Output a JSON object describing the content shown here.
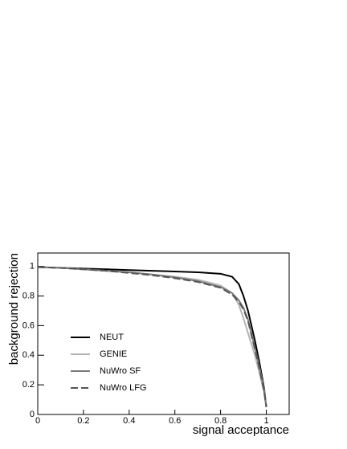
{
  "chart_data": {
    "type": "line",
    "x_label": "signal acceptance",
    "y_label": "background rejection",
    "x": [
      0,
      0.1,
      0.2,
      0.3,
      0.4,
      0.5,
      0.6,
      0.7,
      0.8,
      0.85,
      0.88,
      0.9,
      0.92,
      0.95,
      0.97,
      0.99,
      1.0
    ],
    "series": [
      {
        "name": "NEUT",
        "color": "#000000",
        "dashed": false,
        "values": [
          0.995,
          0.99,
          0.985,
          0.98,
          0.975,
          0.97,
          0.965,
          0.96,
          0.95,
          0.93,
          0.88,
          0.8,
          0.7,
          0.5,
          0.35,
          0.18,
          0.05
        ]
      },
      {
        "name": "GENIE",
        "color": "#b4b4b4",
        "dashed": false,
        "values": [
          0.995,
          0.99,
          0.98,
          0.97,
          0.96,
          0.945,
          0.93,
          0.91,
          0.87,
          0.82,
          0.74,
          0.65,
          0.55,
          0.4,
          0.28,
          0.15,
          0.05
        ]
      },
      {
        "name": "NuWro SF",
        "color": "#7a7a7a",
        "dashed": false,
        "values": [
          0.995,
          0.99,
          0.98,
          0.97,
          0.96,
          0.945,
          0.925,
          0.9,
          0.86,
          0.82,
          0.77,
          0.72,
          0.64,
          0.45,
          0.32,
          0.17,
          0.05
        ]
      },
      {
        "name": "NuWro LFG",
        "color": "#555555",
        "dashed": true,
        "values": [
          0.995,
          0.99,
          0.98,
          0.97,
          0.955,
          0.94,
          0.92,
          0.895,
          0.855,
          0.81,
          0.76,
          0.71,
          0.63,
          0.44,
          0.31,
          0.16,
          0.05
        ]
      }
    ],
    "xlim": [
      0,
      1.1
    ],
    "xticks": [
      0,
      0.2,
      0.4,
      0.6,
      0.8,
      1
    ],
    "ylim": [
      0,
      1.09
    ],
    "yticks": [
      0,
      0.2,
      0.4,
      0.6,
      0.8,
      1
    ],
    "legend": "lower-left"
  }
}
